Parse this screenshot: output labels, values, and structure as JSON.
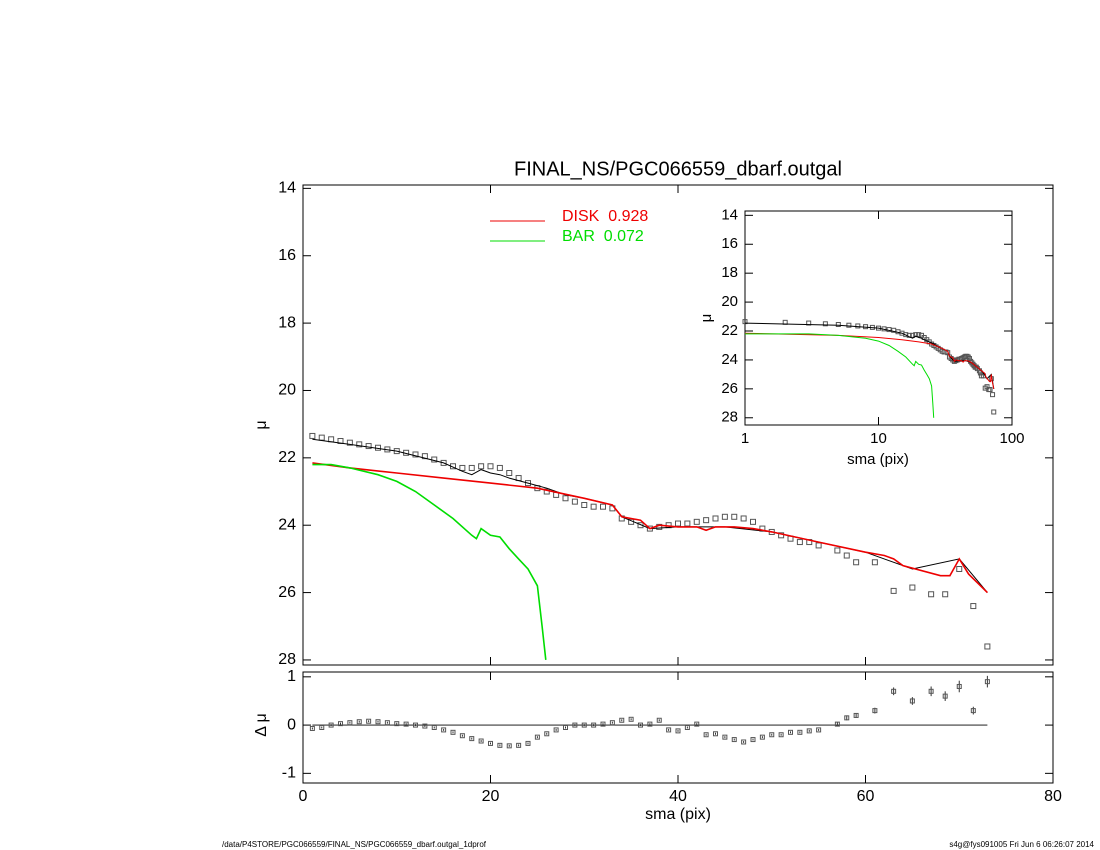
{
  "footer_left": "/data/P4STORE/PGC066559/FINAL_NS/PGC066559_dbarf.outgal_1dprof",
  "footer_right": "s4g@fys091005  Fri Jun  6 06:26:07 2014",
  "chart_data": [
    {
      "type": "line",
      "title": "FINAL_NS/PGC066559_dbarf.outgal",
      "ylabel": "μ",
      "xlim": [
        0,
        80
      ],
      "xticks": [
        0,
        20,
        40,
        60,
        80
      ],
      "ylim": [
        28.15,
        13.9
      ],
      "yticks": [
        14,
        16,
        18,
        20,
        22,
        24,
        26,
        28
      ],
      "series": [
        {
          "marker": "square",
          "color": "#555555",
          "x": [
            1,
            2,
            3,
            4,
            5,
            6,
            7,
            8,
            9,
            10,
            11,
            12,
            13,
            14,
            15,
            16,
            17,
            18,
            19,
            20,
            21,
            22,
            23,
            24,
            25,
            26,
            27,
            28,
            29,
            30,
            31,
            32,
            33,
            34,
            35,
            36,
            37,
            38,
            39,
            40,
            41,
            42,
            43,
            44,
            45,
            46,
            47,
            48,
            49,
            50,
            51,
            52,
            53,
            54,
            55,
            57,
            58,
            59,
            61,
            63,
            65,
            67,
            68.5,
            70,
            71.5,
            73
          ],
          "values": [
            21.35,
            21.4,
            21.45,
            21.5,
            21.55,
            21.6,
            21.65,
            21.7,
            21.75,
            21.8,
            21.85,
            21.9,
            21.95,
            22.05,
            22.15,
            22.25,
            22.3,
            22.3,
            22.25,
            22.25,
            22.3,
            22.45,
            22.6,
            22.75,
            22.9,
            23.0,
            23.1,
            23.2,
            23.3,
            23.4,
            23.45,
            23.45,
            23.5,
            23.8,
            23.9,
            24.0,
            24.1,
            24.05,
            24.0,
            23.95,
            23.95,
            23.9,
            23.85,
            23.8,
            23.75,
            23.75,
            23.8,
            23.9,
            24.1,
            24.2,
            24.3,
            24.4,
            24.5,
            24.5,
            24.6,
            24.75,
            24.9,
            25.1,
            25.1,
            25.95,
            25.85,
            26.05,
            26.05,
            25.3,
            26.4,
            27.6
          ]
        },
        {
          "color": "#000000",
          "x": [
            1,
            5,
            10,
            15,
            17,
            18,
            19,
            20,
            21,
            22,
            24,
            26,
            28,
            30,
            33,
            34,
            37,
            40,
            45,
            50,
            55,
            60,
            65,
            70,
            73
          ],
          "values": [
            21.45,
            21.6,
            21.8,
            22.15,
            22.4,
            22.5,
            22.35,
            22.45,
            22.5,
            22.6,
            22.75,
            22.9,
            23.1,
            23.2,
            23.4,
            23.75,
            24.1,
            24.05,
            24.05,
            24.2,
            24.5,
            24.8,
            25.3,
            25.0,
            26.0
          ]
        },
        {
          "name": "DISK  0.928",
          "color": "#ee0000",
          "x": [
            1,
            5,
            10,
            15,
            20,
            25,
            30,
            33,
            34,
            36,
            37,
            38,
            40,
            42,
            43,
            44,
            46,
            48,
            50,
            55,
            60,
            62,
            63,
            64,
            68,
            69,
            70,
            71,
            73
          ],
          "values": [
            22.15,
            22.3,
            22.45,
            22.6,
            22.75,
            22.9,
            23.2,
            23.4,
            23.75,
            23.85,
            24.1,
            24.0,
            24.05,
            24.05,
            24.15,
            24.05,
            24.05,
            24.1,
            24.2,
            24.5,
            24.8,
            24.9,
            25.0,
            25.2,
            25.5,
            25.5,
            25.0,
            25.45,
            26.0
          ]
        },
        {
          "name": "BAR  0.072",
          "color": "#00dd00",
          "x": [
            1,
            3,
            5,
            8,
            10,
            12,
            14,
            16,
            18,
            18.5,
            19,
            20,
            21,
            22,
            23,
            24,
            25,
            25.5,
            25.9
          ],
          "values": [
            22.2,
            22.2,
            22.3,
            22.5,
            22.7,
            23.0,
            23.4,
            23.8,
            24.3,
            24.4,
            24.1,
            24.3,
            24.35,
            24.7,
            25.0,
            25.3,
            25.8,
            27.0,
            28.0
          ]
        }
      ]
    },
    {
      "type": "errorbar",
      "xlabel": "sma (pix)",
      "ylabel": "Δ μ",
      "xlim": [
        0,
        80
      ],
      "xticks": [
        0,
        20,
        40,
        60,
        80
      ],
      "ylim": [
        -1.2,
        1.1
      ],
      "yticks": [
        -1,
        0,
        1
      ],
      "x": [
        1,
        2,
        3,
        4,
        5,
        6,
        7,
        8,
        9,
        10,
        11,
        12,
        13,
        14,
        15,
        16,
        17,
        18,
        19,
        20,
        21,
        22,
        23,
        24,
        25,
        26,
        27,
        28,
        29,
        30,
        31,
        32,
        33,
        34,
        35,
        36,
        37,
        38,
        39,
        40,
        41,
        42,
        43,
        44,
        45,
        46,
        47,
        48,
        49,
        50,
        51,
        52,
        53,
        54,
        55,
        57,
        58,
        59,
        61,
        63,
        65,
        67,
        68.5,
        70,
        71.5,
        73
      ],
      "values": [
        -0.07,
        -0.05,
        0.0,
        0.03,
        0.05,
        0.07,
        0.08,
        0.07,
        0.05,
        0.03,
        0.02,
        0.0,
        -0.02,
        -0.05,
        -0.1,
        -0.15,
        -0.22,
        -0.28,
        -0.33,
        -0.38,
        -0.42,
        -0.43,
        -0.42,
        -0.38,
        -0.25,
        -0.18,
        -0.1,
        -0.05,
        0.0,
        0.0,
        0.0,
        0.02,
        0.05,
        0.1,
        0.12,
        0.0,
        0.02,
        0.1,
        -0.1,
        -0.12,
        -0.05,
        0.02,
        -0.2,
        -0.18,
        -0.25,
        -0.3,
        -0.35,
        -0.3,
        -0.25,
        -0.2,
        -0.2,
        -0.15,
        -0.15,
        -0.12,
        -0.1,
        0.02,
        0.15,
        0.2,
        0.3,
        0.7,
        0.5,
        0.7,
        0.6,
        0.8,
        0.3,
        0.9
      ],
      "errors": [
        0.02,
        0.02,
        0.02,
        0.02,
        0.02,
        0.02,
        0.02,
        0.02,
        0.02,
        0.02,
        0.02,
        0.02,
        0.02,
        0.02,
        0.02,
        0.02,
        0.02,
        0.02,
        0.02,
        0.02,
        0.02,
        0.02,
        0.02,
        0.02,
        0.02,
        0.02,
        0.02,
        0.02,
        0.02,
        0.02,
        0.02,
        0.02,
        0.02,
        0.02,
        0.02,
        0.02,
        0.02,
        0.02,
        0.02,
        0.02,
        0.02,
        0.02,
        0.02,
        0.02,
        0.02,
        0.02,
        0.02,
        0.02,
        0.02,
        0.02,
        0.02,
        0.02,
        0.02,
        0.02,
        0.02,
        0.04,
        0.05,
        0.05,
        0.06,
        0.08,
        0.08,
        0.1,
        0.1,
        0.12,
        0.08,
        0.12
      ]
    },
    {
      "type": "inset",
      "xscale": "log",
      "xlabel": "sma (pix)",
      "ylabel": "μ",
      "xlim": [
        1,
        100
      ],
      "xticks": [
        1,
        10,
        100
      ],
      "ylim": [
        28.5,
        13.7
      ],
      "yticks": [
        14,
        16,
        18,
        20,
        22,
        24,
        26,
        28
      ]
    }
  ]
}
